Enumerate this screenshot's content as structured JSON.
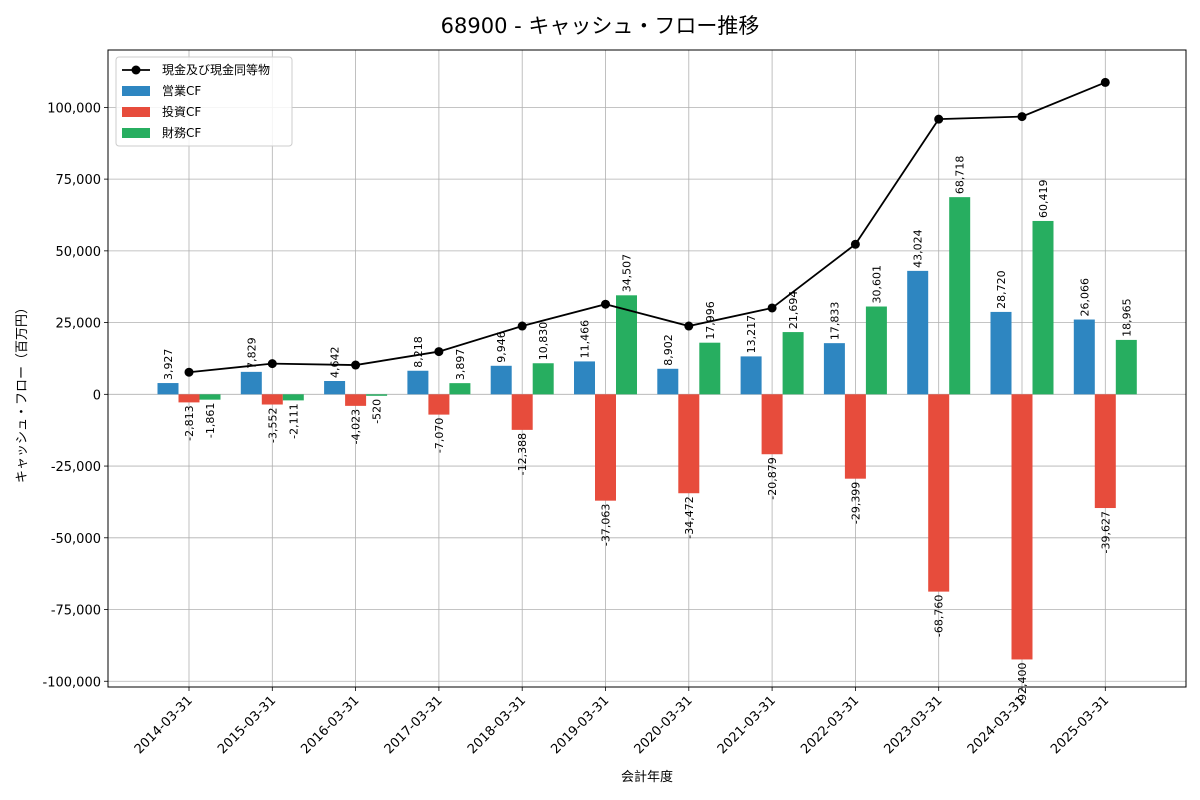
{
  "chart_data": {
    "type": "bar",
    "title": "68900 - キャッシュ・フロー推移",
    "xlabel": "会計年度",
    "ylabel": "キャッシュ・フロー（百万円）",
    "categories": [
      "2014-03-31",
      "2015-03-31",
      "2016-03-31",
      "2017-03-31",
      "2018-03-31",
      "2019-03-31",
      "2020-03-31",
      "2021-03-31",
      "2022-03-31",
      "2023-03-31",
      "2024-03-31",
      "2025-03-31"
    ],
    "ylim": [
      -102000,
      120000
    ],
    "yticks": [
      -100000,
      -75000,
      -50000,
      -25000,
      0,
      25000,
      50000,
      75000,
      100000
    ],
    "ytick_labels": [
      "-100,000",
      "-75,000",
      "-50,000",
      "-25,000",
      "0",
      "25,000",
      "50,000",
      "75,000",
      "100,000"
    ],
    "grid": true,
    "legend_position": "top-left",
    "series": [
      {
        "name": "営業CF",
        "kind": "bar",
        "color": "#2e86c1",
        "values": [
          3927,
          7829,
          4642,
          8218,
          9946,
          11466,
          8902,
          13217,
          17833,
          43024,
          28720,
          26066
        ],
        "labels": [
          "3,927",
          "7,829",
          "4,642",
          "8,218",
          "9,946",
          "11,466",
          "8,902",
          "13,217",
          "17,833",
          "43,024",
          "28,720",
          "26,066"
        ]
      },
      {
        "name": "投資CF",
        "kind": "bar",
        "color": "#e74c3c",
        "values": [
          -2813,
          -3552,
          -4023,
          -7070,
          -12388,
          -37063,
          -34472,
          -20879,
          -29399,
          -68760,
          -92400,
          -39627
        ],
        "labels": [
          "-2,813",
          "-3,552",
          "-4,023",
          "-7,070",
          "-12,388",
          "-37,063",
          "-34,472",
          "-20,879",
          "-29,399",
          "-68,760",
          "-92,400",
          "-39,627"
        ]
      },
      {
        "name": "財務CF",
        "kind": "bar",
        "color": "#27ae60",
        "values": [
          -1861,
          -2111,
          -520,
          3897,
          10830,
          34507,
          17996,
          21694,
          30601,
          68718,
          60419,
          18965
        ],
        "labels": [
          "-1,861",
          "-2,111",
          "-520",
          "3,897",
          "10,830",
          "34,507",
          "17,996",
          "21,694",
          "30,601",
          "68,718",
          "60,419",
          "18,965"
        ]
      },
      {
        "name": "現金及び現金同等物",
        "kind": "line",
        "color": "#000000",
        "values": [
          7700,
          10700,
          10200,
          14900,
          23800,
          31400,
          23800,
          30100,
          52300,
          95900,
          96800,
          108700
        ]
      }
    ]
  }
}
